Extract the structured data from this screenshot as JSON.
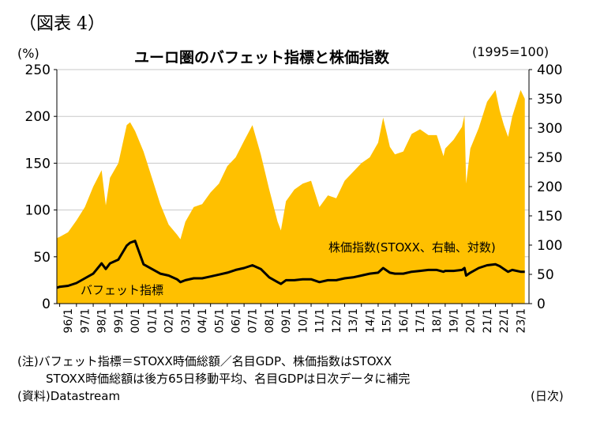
{
  "figure_label": "（図表 4）",
  "chart_data": {
    "type": "area",
    "title": "ユーロ圏のバフェット指標と株価指数",
    "left_axis_unit": "(%)",
    "right_axis_unit": "(1995=100)",
    "ylim_left": [
      0,
      250
    ],
    "ylim_right": [
      0,
      400
    ],
    "yticks_left": [
      "0",
      "50",
      "100",
      "150",
      "200",
      "250"
    ],
    "yticks_right": [
      "0",
      "50",
      "100",
      "150",
      "200",
      "250",
      "300",
      "350",
      "400"
    ],
    "x_ticks": [
      "96/1",
      "97/1",
      "98/1",
      "99/1",
      "00/1",
      "01/1",
      "02/1",
      "03/1",
      "04/1",
      "05/1",
      "06/1",
      "07/1",
      "08/1",
      "09/1",
      "10/1",
      "11/1",
      "12/1",
      "13/1",
      "14/1",
      "15/1",
      "16/1",
      "17/1",
      "18/1",
      "19/1",
      "20/1",
      "21/1",
      "22/1",
      "23/1"
    ],
    "grid": "horizontal",
    "colors": {
      "stock_area": "#FFC000",
      "buffett_line": "#000000",
      "grid": "#C8C8C8"
    },
    "series": [
      {
        "name": "株価指数(STOXX、右軸、対数)",
        "axis": "right",
        "style": "area",
        "x": [
          1995.83,
          1996.0,
          1996.5,
          1997.0,
          1997.5,
          1998.0,
          1998.5,
          1998.75,
          1999.0,
          1999.5,
          2000.0,
          2000.2,
          2000.5,
          2001.0,
          2001.5,
          2002.0,
          2002.5,
          2003.0,
          2003.2,
          2003.5,
          2004.0,
          2004.5,
          2005.0,
          2005.5,
          2006.0,
          2006.5,
          2007.0,
          2007.5,
          2008.0,
          2008.5,
          2009.0,
          2009.2,
          2009.5,
          2010.0,
          2010.5,
          2011.0,
          2011.5,
          2012.0,
          2012.5,
          2013.0,
          2013.5,
          2014.0,
          2014.5,
          2015.0,
          2015.3,
          2015.7,
          2016.0,
          2016.5,
          2017.0,
          2017.5,
          2018.0,
          2018.5,
          2018.9,
          2019.0,
          2019.5,
          2020.0,
          2020.15,
          2020.25,
          2020.5,
          2021.0,
          2021.5,
          2022.0,
          2022.25,
          2022.5,
          2022.75,
          2023.0,
          2023.5,
          2023.75
        ],
        "values": [
          112,
          114,
          122,
          142,
          165,
          200,
          228,
          168,
          215,
          240,
          305,
          310,
          295,
          260,
          215,
          170,
          135,
          118,
          110,
          140,
          165,
          170,
          190,
          205,
          235,
          250,
          278,
          305,
          255,
          195,
          140,
          125,
          175,
          195,
          205,
          210,
          165,
          185,
          180,
          210,
          225,
          240,
          250,
          275,
          318,
          268,
          255,
          260,
          290,
          298,
          288,
          288,
          252,
          265,
          280,
          302,
          322,
          205,
          265,
          300,
          345,
          365,
          330,
          305,
          285,
          320,
          365,
          350
        ]
      },
      {
        "name": "バフェット指標",
        "axis": "left",
        "style": "line",
        "x": [
          1995.83,
          1996.0,
          1996.5,
          1997.0,
          1997.5,
          1998.0,
          1998.5,
          1998.75,
          1999.0,
          1999.5,
          2000.0,
          2000.2,
          2000.5,
          2001.0,
          2001.5,
          2002.0,
          2002.5,
          2003.0,
          2003.2,
          2003.5,
          2004.0,
          2004.5,
          2005.0,
          2005.5,
          2006.0,
          2006.5,
          2007.0,
          2007.5,
          2008.0,
          2008.5,
          2009.0,
          2009.2,
          2009.5,
          2010.0,
          2010.5,
          2011.0,
          2011.5,
          2012.0,
          2012.5,
          2013.0,
          2013.5,
          2014.0,
          2014.5,
          2015.0,
          2015.3,
          2015.7,
          2016.0,
          2016.5,
          2017.0,
          2017.5,
          2018.0,
          2018.5,
          2018.9,
          2019.0,
          2019.5,
          2020.0,
          2020.15,
          2020.25,
          2020.5,
          2021.0,
          2021.5,
          2022.0,
          2022.25,
          2022.5,
          2022.75,
          2023.0,
          2023.5,
          2023.75
        ],
        "values": [
          17,
          18,
          19,
          22,
          27,
          32,
          43,
          37,
          43,
          47,
          62,
          65,
          67,
          42,
          37,
          32,
          30,
          26,
          23,
          25,
          27,
          27,
          29,
          31,
          33,
          36,
          38,
          41,
          37,
          28,
          23,
          21,
          25,
          25,
          26,
          26,
          23,
          25,
          25,
          27,
          28,
          30,
          32,
          33,
          38,
          33,
          32,
          32,
          34,
          35,
          36,
          36,
          34,
          35,
          35,
          36,
          38,
          30,
          33,
          38,
          41,
          42,
          40,
          37,
          34,
          36,
          34,
          34
        ]
      }
    ],
    "annotations": [
      "株価指数(STOXX、右軸、対数)",
      "バフェット指標"
    ]
  },
  "notes": {
    "line1": "(注)バフェット指標＝STOXX時価総額／名目GDP、株価指数はSTOXX",
    "line2": "STOXX時価総額は後方65日移動平均、名目GDPは日次データに補完",
    "source": "(資料)Datastream",
    "date_unit": "(日次)"
  }
}
